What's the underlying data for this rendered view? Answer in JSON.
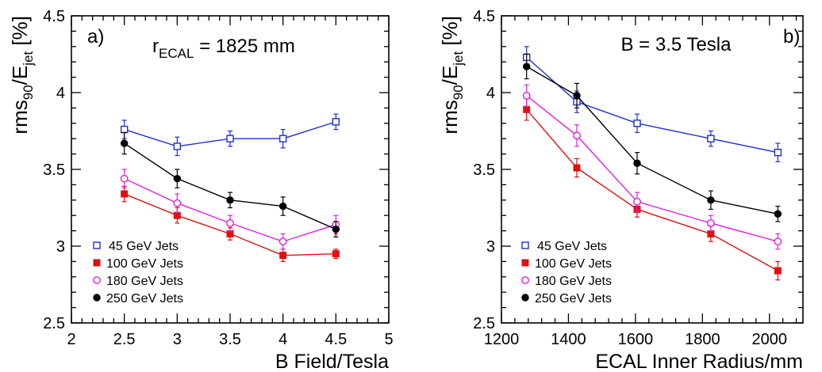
{
  "chart_data": [
    {
      "type": "line",
      "panel_label": "a)",
      "annotation": {
        "main": "r",
        "sub": "ECAL",
        "rest": " = 1825 mm"
      },
      "ylabel": {
        "a": "rms",
        "sub1": "90",
        "b": "/E",
        "sub2": "jet",
        "c": " [%]"
      },
      "xlabel": "B Field/Tesla",
      "xlim": [
        2,
        5
      ],
      "ylim": [
        2.5,
        4.5
      ],
      "xticks": [
        "2",
        "2.5",
        "3",
        "3.5",
        "4",
        "4.5",
        "5"
      ],
      "yticks": [
        "2.5",
        "3",
        "3.5",
        "4",
        "4.5"
      ],
      "x": [
        2.5,
        3,
        3.5,
        4,
        4.5
      ],
      "series": [
        {
          "name": "45 GeV Jets",
          "color": "#1f2fd0",
          "marker": "open-square",
          "values": [
            3.76,
            3.65,
            3.7,
            3.7,
            3.81
          ],
          "err": [
            0.06,
            0.06,
            0.05,
            0.06,
            0.05
          ]
        },
        {
          "name": "100 GeV Jets",
          "color": "#e01010",
          "marker": "filled-square",
          "values": [
            3.34,
            3.2,
            3.08,
            2.94,
            2.95
          ],
          "err": [
            0.05,
            0.05,
            0.04,
            0.04,
            0.03
          ]
        },
        {
          "name": "180 GeV Jets",
          "color": "#e020e0",
          "marker": "open-circle",
          "values": [
            3.44,
            3.28,
            3.15,
            3.03,
            3.14
          ],
          "err": [
            0.06,
            0.06,
            0.05,
            0.05,
            0.06
          ]
        },
        {
          "name": "250 GeV Jets",
          "color": "#000000",
          "marker": "filled-circle",
          "values": [
            3.67,
            3.44,
            3.3,
            3.26,
            3.11
          ],
          "err": [
            0.07,
            0.06,
            0.05,
            0.06,
            0.05
          ]
        }
      ]
    },
    {
      "type": "line",
      "panel_label": "b)",
      "annotation": {
        "main": "B = 3.5 Tesla",
        "sub": "",
        "rest": ""
      },
      "ylabel": {
        "a": "rms",
        "sub1": "90",
        "b": "/E",
        "sub2": "jet",
        "c": " [%]"
      },
      "xlabel": "ECAL Inner Radius/mm",
      "xlim": [
        1200,
        2100
      ],
      "ylim": [
        2.5,
        4.5
      ],
      "xticks": [
        "1200",
        "1400",
        "1600",
        "1800",
        "2000"
      ],
      "yticks": [
        "2.5",
        "3",
        "3.5",
        "4",
        "4.5"
      ],
      "x": [
        1275,
        1425,
        1605,
        1825,
        2025
      ],
      "series": [
        {
          "name": "45 GeV Jets",
          "color": "#1f2fd0",
          "marker": "open-square",
          "values": [
            4.23,
            3.94,
            3.8,
            3.7,
            3.61
          ],
          "err": [
            0.07,
            0.07,
            0.06,
            0.05,
            0.06
          ]
        },
        {
          "name": "100 GeV Jets",
          "color": "#e01010",
          "marker": "filled-square",
          "values": [
            3.89,
            3.51,
            3.24,
            3.08,
            2.84
          ],
          "err": [
            0.07,
            0.06,
            0.05,
            0.05,
            0.06
          ]
        },
        {
          "name": "180 GeV Jets",
          "color": "#e020e0",
          "marker": "open-circle",
          "values": [
            3.98,
            3.72,
            3.29,
            3.15,
            3.03
          ],
          "err": [
            0.07,
            0.07,
            0.06,
            0.05,
            0.05
          ]
        },
        {
          "name": "250 GeV Jets",
          "color": "#000000",
          "marker": "filled-circle",
          "values": [
            4.17,
            3.98,
            3.54,
            3.3,
            3.21
          ],
          "err": [
            0.08,
            0.08,
            0.07,
            0.06,
            0.05
          ]
        }
      ]
    }
  ]
}
